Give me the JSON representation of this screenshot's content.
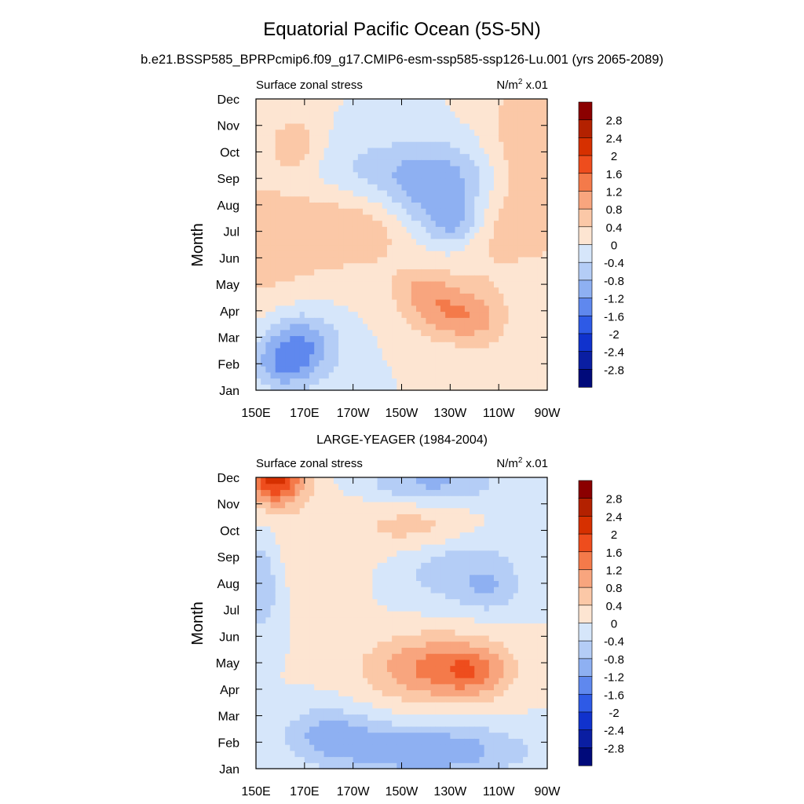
{
  "title": "Equatorial Pacific Ocean (5S-5N)",
  "subtitle": "b.e21.BSSP585_BPRPcmip6.f09_g17.CMIP6-esm-ssp585-ssp126-Lu.001 (yrs 2065-2089)",
  "chart_data": [
    {
      "type": "heatmap",
      "panel_title": "",
      "left_label": "Surface zonal stress",
      "units_prefix": "N/m",
      "units_sup": "2",
      "units_suffix": " x.01",
      "ylabel": "Month",
      "xticks": [
        "150E",
        "170E",
        "170W",
        "150W",
        "130W",
        "110W",
        "90W"
      ],
      "xlim": [
        150,
        270
      ],
      "yticks": [
        "Jan",
        "Feb",
        "Mar",
        "Apr",
        "May",
        "Jun",
        "Jul",
        "Aug",
        "Sep",
        "Oct",
        "Nov",
        "Dec"
      ],
      "anomalies": [
        {
          "x": 152,
          "y": 5.5,
          "sx": 28,
          "sy": 3.2,
          "v": 0.5
        },
        {
          "x": 166,
          "y": 9.3,
          "sx": 10,
          "sy": 1.0,
          "v": 0.7
        },
        {
          "x": 262,
          "y": 9.3,
          "sx": 18,
          "sy": 2.8,
          "v": 0.8
        },
        {
          "x": 220,
          "y": 6.1,
          "sx": 55,
          "sy": 1.6,
          "v": 1.0
        },
        {
          "x": 232,
          "y": 2.8,
          "sx": 18,
          "sy": 1.0,
          "v": 1.0
        },
        {
          "x": 220,
          "y": 3.8,
          "sx": 14,
          "sy": 0.9,
          "v": 0.8
        },
        {
          "x": 225,
          "y": 6.7,
          "sx": 22,
          "sy": 1.8,
          "v": -1.5
        },
        {
          "x": 232,
          "y": 6.3,
          "sx": 10,
          "sy": 0.8,
          "v": -0.6
        },
        {
          "x": 210,
          "y": 8.3,
          "sx": 40,
          "sy": 1.3,
          "v": -0.6
        },
        {
          "x": 168,
          "y": 1.7,
          "sx": 16,
          "sy": 1.3,
          "v": -1.3
        },
        {
          "x": 160,
          "y": 0.9,
          "sx": 12,
          "sy": 0.9,
          "v": -0.7
        },
        {
          "x": 244,
          "y": 2.7,
          "sx": 12,
          "sy": 2.2,
          "v": 0.3
        }
      ]
    },
    {
      "type": "heatmap",
      "panel_title": "LARGE-YEAGER (1984-2004)",
      "left_label": "Surface zonal stress",
      "units_prefix": "N/m",
      "units_sup": "2",
      "units_suffix": " x.01",
      "ylabel": "Month",
      "xticks": [
        "150E",
        "170E",
        "170W",
        "150W",
        "130W",
        "110W",
        "90W"
      ],
      "xlim": [
        150,
        270
      ],
      "yticks": [
        "Jan",
        "Feb",
        "Mar",
        "Apr",
        "May",
        "Jun",
        "Jul",
        "Aug",
        "Sep",
        "Oct",
        "Nov",
        "Dec"
      ],
      "anomalies": [
        {
          "x": 158,
          "y": 11.0,
          "sx": 12,
          "sy": 1.0,
          "v": 2.2
        },
        {
          "x": 180,
          "y": 8.5,
          "sx": 28,
          "sy": 2.2,
          "v": 0.3
        },
        {
          "x": 218,
          "y": 9.1,
          "sx": 22,
          "sy": 1.0,
          "v": 0.6
        },
        {
          "x": 224,
          "y": 3.8,
          "sx": 28,
          "sy": 1.3,
          "v": 1.3
        },
        {
          "x": 240,
          "y": 3.7,
          "sx": 13,
          "sy": 0.9,
          "v": 0.7
        },
        {
          "x": 220,
          "y": 0.7,
          "sx": 40,
          "sy": 1.0,
          "v": -1.2
        },
        {
          "x": 180,
          "y": 1.4,
          "sx": 18,
          "sy": 1.0,
          "v": -0.8
        },
        {
          "x": 222,
          "y": 10.8,
          "sx": 28,
          "sy": 0.8,
          "v": -0.9
        },
        {
          "x": 232,
          "y": 7.6,
          "sx": 28,
          "sy": 1.4,
          "v": -0.7
        },
        {
          "x": 246,
          "y": 6.7,
          "sx": 11,
          "sy": 0.8,
          "v": -0.5
        },
        {
          "x": 152,
          "y": 7.0,
          "sx": 8,
          "sy": 1.8,
          "v": -0.8
        }
      ]
    }
  ],
  "colorbar": {
    "labels": [
      "2.8",
      "2.4",
      "2",
      "1.6",
      "1.2",
      "0.8",
      "0.4",
      "0",
      "-0.4",
      "-0.8",
      "-1.2",
      "-1.6",
      "-2",
      "-2.4",
      "-2.8"
    ],
    "colors": [
      "#8b0000",
      "#b32100",
      "#d63000",
      "#ee4d1d",
      "#f47a4a",
      "#f8a57e",
      "#fbc8a7",
      "#fde5d2",
      "#d6e6fa",
      "#b4cdf6",
      "#8eb0f2",
      "#5f88ee",
      "#2e5ae6",
      "#1032cd",
      "#0a1ea2",
      "#000a7a"
    ]
  }
}
